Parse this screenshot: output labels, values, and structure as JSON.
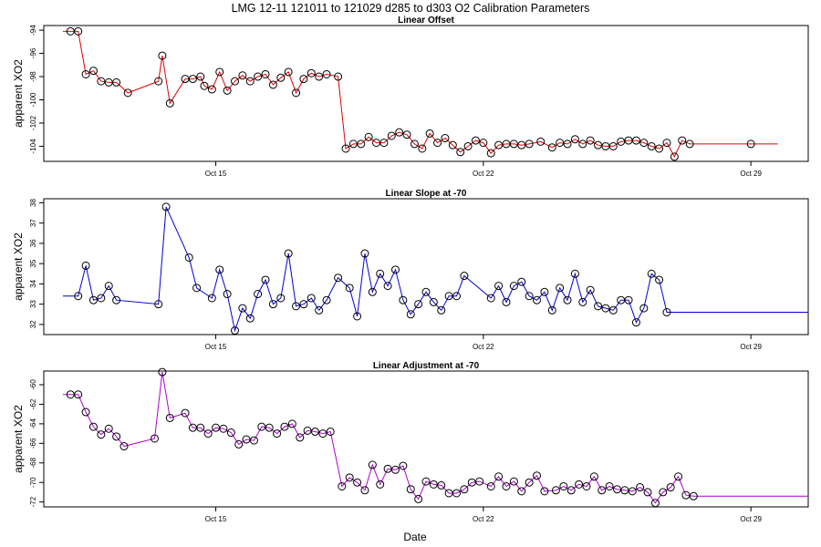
{
  "figure": {
    "title": "LMG   12-11    121011 to 121029    d285 to d303   O2 Calibration Parameters",
    "xlabel": "Date",
    "xticks": [
      "Oct 15",
      "Oct 22",
      "Oct 29"
    ]
  },
  "chart_data": [
    {
      "type": "line",
      "title": "Linear Offset",
      "ylabel": "apparent XO2",
      "color": "#e00000",
      "xlabel": "Date",
      "x_unit": "day of October 2012",
      "xlim": [
        10.5,
        30.5
      ],
      "ylim": [
        -105.3,
        -93.6
      ],
      "yticks": [
        -104,
        -102,
        -100,
        -98,
        -96,
        -94
      ],
      "xticks": [
        15,
        22,
        29
      ],
      "xtick_labels": [
        "Oct 15",
        "Oct 22",
        "Oct 29"
      ],
      "x": [
        11.0,
        11.2,
        11.4,
        11.6,
        11.8,
        12.0,
        12.2,
        12.4,
        12.7,
        13.5,
        13.6,
        13.8,
        14.2,
        14.4,
        14.6,
        14.7,
        14.9,
        15.1,
        15.3,
        15.5,
        15.7,
        15.9,
        16.1,
        16.3,
        16.5,
        16.7,
        16.9,
        17.1,
        17.3,
        17.5,
        17.7,
        17.9,
        18.2,
        18.4,
        18.6,
        18.8,
        19.0,
        19.2,
        19.4,
        19.6,
        19.8,
        20.0,
        20.2,
        20.4,
        20.6,
        20.8,
        21.0,
        21.2,
        21.4,
        21.6,
        21.8,
        22.0,
        22.2,
        22.4,
        22.6,
        22.8,
        23.0,
        23.2,
        23.5,
        23.8,
        24.0,
        24.2,
        24.4,
        24.6,
        24.8,
        25.0,
        25.2,
        25.4,
        25.6,
        25.8,
        26.0,
        26.2,
        26.4,
        26.6,
        26.8,
        27.0,
        27.2,
        27.4,
        27.6,
        27.8,
        28.0,
        28.2,
        28.4,
        28.6,
        29.0,
        29.7
      ],
      "values": [
        -94.1,
        -94.1,
        -94.1,
        -97.8,
        -97.5,
        -98.4,
        -98.5,
        -98.5,
        -99.4,
        -98.4,
        -96.2,
        -100.3,
        -98.2,
        -98.2,
        -98.0,
        -98.8,
        -99.1,
        -97.6,
        -99.2,
        -98.4,
        -97.9,
        -98.4,
        -98.0,
        -97.8,
        -98.7,
        -98.1,
        -97.6,
        -99.4,
        -98.2,
        -97.7,
        -98.0,
        -97.8,
        -98.0,
        -104.2,
        -103.8,
        -103.8,
        -103.2,
        -103.7,
        -103.7,
        -103.1,
        -102.8,
        -103.0,
        -103.8,
        -104.2,
        -102.9,
        -103.7,
        -103.3,
        -103.9,
        -104.5,
        -104.0,
        -103.5,
        -103.7,
        -104.6,
        -103.9,
        -103.8,
        -103.8,
        -103.9,
        -103.8,
        -103.6,
        -104.1,
        -103.7,
        -103.8,
        -103.4,
        -103.8,
        -103.5,
        -103.9,
        -104.0,
        -104.0,
        -103.6,
        -103.5,
        -103.5,
        -103.7,
        -104.0,
        -104.2,
        -103.7,
        -104.9,
        -103.5,
        -103.8,
        -103.8,
        -103.8,
        -103.8,
        -103.8,
        -103.8,
        -103.8,
        -103.8,
        -103.8
      ],
      "marker_indices": [
        1,
        2,
        3,
        4,
        5,
        6,
        7,
        8,
        9,
        10,
        11,
        12,
        13,
        14,
        15,
        16,
        17,
        18,
        19,
        20,
        21,
        22,
        23,
        24,
        25,
        26,
        27,
        28,
        29,
        30,
        31,
        32,
        33,
        34,
        35,
        36,
        37,
        38,
        39,
        40,
        41,
        42,
        43,
        44,
        45,
        46,
        47,
        48,
        49,
        50,
        51,
        52,
        53,
        54,
        55,
        56,
        57,
        58,
        59,
        60,
        61,
        62,
        63,
        64,
        65,
        66,
        67,
        68,
        69,
        70,
        71,
        72,
        73,
        74,
        75,
        76,
        77,
        84
      ]
    },
    {
      "type": "line",
      "title": "Linear Slope at -70",
      "ylabel": "apparent XO2",
      "color": "#0000d0",
      "xlabel": "Date",
      "x_unit": "day of October 2012",
      "xlim": [
        10.5,
        30.5
      ],
      "ylim": [
        31.5,
        38.2
      ],
      "yticks": [
        32,
        33,
        34,
        35,
        36,
        37,
        38
      ],
      "xticks": [
        15,
        22,
        29
      ],
      "xtick_labels": [
        "Oct 15",
        "Oct 22",
        "Oct 29"
      ],
      "x": [
        11.0,
        11.4,
        11.6,
        11.8,
        12.0,
        12.2,
        12.4,
        13.5,
        13.7,
        14.3,
        14.5,
        14.9,
        15.1,
        15.3,
        15.5,
        15.7,
        15.9,
        16.1,
        16.3,
        16.5,
        16.7,
        16.9,
        17.1,
        17.3,
        17.5,
        17.7,
        17.9,
        18.2,
        18.5,
        18.7,
        18.9,
        19.1,
        19.3,
        19.5,
        19.7,
        19.9,
        20.1,
        20.3,
        20.5,
        20.7,
        20.9,
        21.1,
        21.3,
        21.5,
        22.2,
        22.4,
        22.6,
        22.8,
        23.0,
        23.2,
        23.4,
        23.6,
        23.8,
        24.0,
        24.2,
        24.4,
        24.6,
        24.8,
        25.0,
        25.2,
        25.4,
        25.6,
        25.8,
        26.0,
        26.2,
        26.4,
        26.6,
        26.8,
        27.0,
        27.2,
        27.4,
        27.6,
        27.8,
        28.0,
        28.2,
        28.4,
        28.6,
        28.8,
        29.0,
        29.3,
        29.5,
        29.7,
        30.5
      ],
      "values": [
        33.4,
        33.4,
        34.9,
        33.2,
        33.3,
        33.9,
        33.2,
        33.0,
        37.8,
        35.3,
        33.8,
        33.3,
        34.7,
        33.5,
        31.7,
        32.8,
        32.3,
        33.5,
        34.2,
        33.0,
        33.3,
        35.5,
        32.9,
        33.0,
        33.3,
        32.7,
        33.2,
        34.3,
        33.8,
        32.4,
        35.5,
        33.6,
        34.5,
        33.9,
        34.7,
        33.2,
        32.5,
        33.0,
        33.6,
        33.1,
        32.7,
        33.4,
        33.4,
        34.4,
        33.3,
        33.9,
        33.1,
        33.9,
        34.1,
        33.4,
        33.2,
        33.6,
        32.7,
        33.8,
        33.2,
        34.5,
        33.1,
        33.7,
        32.9,
        32.8,
        32.7,
        33.2,
        33.2,
        32.1,
        32.8,
        34.5,
        34.2,
        32.6,
        32.6,
        32.6,
        32.6,
        32.6,
        32.6,
        32.6,
        32.6,
        32.6,
        32.6,
        32.6,
        32.6,
        32.6,
        32.6,
        32.6,
        32.6
      ],
      "marker_indices": [
        1,
        2,
        3,
        4,
        5,
        6,
        7,
        8,
        9,
        10,
        11,
        12,
        13,
        14,
        15,
        16,
        17,
        18,
        19,
        20,
        21,
        22,
        23,
        24,
        25,
        26,
        27,
        28,
        29,
        30,
        31,
        32,
        33,
        34,
        35,
        36,
        37,
        38,
        39,
        40,
        41,
        42,
        43,
        44,
        45,
        46,
        47,
        48,
        49,
        50,
        51,
        52,
        53,
        54,
        55,
        56,
        57,
        58,
        59,
        60,
        61,
        62,
        63,
        64,
        65,
        66,
        67
      ]
    },
    {
      "type": "line",
      "title": "Linear Adjustment at -70",
      "ylabel": "apparent XO2",
      "color": "#b000d0",
      "xlabel": "Date",
      "x_unit": "day of October 2012",
      "xlim": [
        10.5,
        30.5
      ],
      "ylim": [
        -72.5,
        -58.6
      ],
      "yticks": [
        -72,
        -70,
        -68,
        -66,
        -64,
        -62,
        -60
      ],
      "xticks": [
        15,
        22,
        29
      ],
      "xtick_labels": [
        "Oct 15",
        "Oct 22",
        "Oct 29"
      ],
      "x": [
        11.0,
        11.2,
        11.4,
        11.6,
        11.8,
        12.0,
        12.2,
        12.4,
        12.6,
        13.4,
        13.6,
        13.8,
        14.2,
        14.4,
        14.6,
        14.8,
        15.0,
        15.2,
        15.4,
        15.6,
        15.8,
        16.0,
        16.2,
        16.4,
        16.6,
        16.8,
        17.0,
        17.2,
        17.4,
        17.6,
        17.8,
        18.0,
        18.3,
        18.5,
        18.7,
        18.9,
        19.1,
        19.3,
        19.5,
        19.7,
        19.9,
        20.1,
        20.3,
        20.5,
        20.7,
        20.9,
        21.1,
        21.3,
        21.5,
        21.7,
        21.9,
        22.2,
        22.4,
        22.6,
        22.8,
        23.0,
        23.2,
        23.4,
        23.6,
        23.9,
        24.1,
        24.3,
        24.5,
        24.7,
        24.9,
        25.1,
        25.3,
        25.5,
        25.7,
        25.9,
        26.1,
        26.3,
        26.5,
        26.7,
        26.9,
        27.1,
        27.3,
        27.5,
        27.7,
        27.9,
        28.1,
        28.3,
        28.5,
        28.7,
        29.1,
        29.8,
        30.5
      ],
      "values": [
        -61.0,
        -61.0,
        -61.0,
        -62.8,
        -64.3,
        -65.1,
        -64.5,
        -65.3,
        -66.3,
        -65.5,
        -58.7,
        -63.4,
        -62.9,
        -64.4,
        -64.4,
        -65.0,
        -64.4,
        -64.5,
        -64.9,
        -66.1,
        -65.6,
        -65.7,
        -64.3,
        -64.4,
        -65.0,
        -64.3,
        -64.0,
        -65.4,
        -64.7,
        -64.8,
        -65.0,
        -64.8,
        -70.4,
        -69.5,
        -70.0,
        -70.8,
        -68.2,
        -70.2,
        -68.6,
        -68.7,
        -68.3,
        -70.7,
        -71.7,
        -69.9,
        -70.2,
        -70.3,
        -71.1,
        -71.1,
        -70.7,
        -70.0,
        -69.9,
        -70.4,
        -69.4,
        -70.4,
        -69.9,
        -70.9,
        -70.0,
        -69.3,
        -70.9,
        -70.8,
        -70.4,
        -70.8,
        -70.2,
        -70.4,
        -69.4,
        -70.8,
        -70.4,
        -70.7,
        -70.8,
        -70.9,
        -70.5,
        -71.0,
        -72.1,
        -71.0,
        -70.5,
        -69.4,
        -71.3,
        -71.4,
        -71.4,
        -71.4,
        -71.4,
        -71.4,
        -71.4,
        -71.4,
        -71.4,
        -71.4,
        -71.4
      ],
      "marker_indices": [
        1,
        2,
        3,
        4,
        5,
        6,
        7,
        8,
        9,
        10,
        11,
        12,
        13,
        14,
        15,
        16,
        17,
        18,
        19,
        20,
        21,
        22,
        23,
        24,
        25,
        26,
        27,
        28,
        29,
        30,
        31,
        32,
        33,
        34,
        35,
        36,
        37,
        38,
        39,
        40,
        41,
        42,
        43,
        44,
        45,
        46,
        47,
        48,
        49,
        50,
        51,
        52,
        53,
        54,
        55,
        56,
        57,
        58,
        59,
        60,
        61,
        62,
        63,
        64,
        65,
        66,
        67,
        68,
        69,
        70,
        71,
        72,
        73,
        74,
        75,
        76,
        77
      ]
    }
  ]
}
